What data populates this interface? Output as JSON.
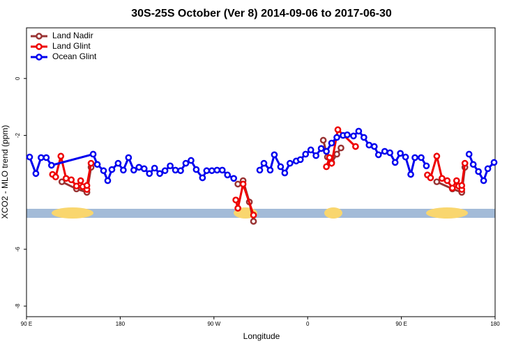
{
  "chart_data": {
    "type": "line",
    "title": "30S-25S October (Ver 8)   2014-09-06 to 2017-06-30",
    "x_label": "Longitude",
    "y_label": "XCO2 - MLO trend (ppm)",
    "xlim": [
      90,
      540
    ],
    "xticks": [
      {
        "value": 90,
        "label": "90 E"
      },
      {
        "value": 180,
        "label": "180"
      },
      {
        "value": 270,
        "label": "90 W"
      },
      {
        "value": 360,
        "label": "0"
      },
      {
        "value": 450,
        "label": "90 E"
      },
      {
        "value": 540,
        "label": "180"
      }
    ],
    "ylim": [
      -8.37,
      1.78
    ],
    "yticks": [
      0,
      -2,
      -6,
      -8
    ],
    "legend": "topleft",
    "series": [
      {
        "name": "Land Nadir",
        "color": "#993333",
        "x": [
          124,
          138,
          148,
          152,
          null,
          293,
          298,
          304,
          308,
          null,
          375,
          379,
          383,
          388,
          392,
          null,
          484,
          499,
          508,
          511
        ],
        "values": [
          -3.63,
          -3.88,
          -4.0,
          -3.12,
          null,
          -3.71,
          -3.59,
          -4.34,
          -5.02,
          null,
          -2.17,
          -2.76,
          -2.95,
          -2.66,
          -2.44,
          null,
          -3.63,
          -3.88,
          -4.0,
          -3.12
        ]
      },
      {
        "name": "Land Glint",
        "color": "#ee0000",
        "x": [
          115,
          118,
          123,
          128,
          133,
          138,
          142,
          144,
          148,
          148,
          152,
          null,
          291,
          293,
          298,
          308,
          null,
          378,
          381,
          383,
          389,
          406,
          null,
          475,
          478,
          484,
          489,
          494,
          499,
          503,
          505,
          508,
          508,
          511
        ],
        "values": [
          -3.37,
          -3.46,
          -2.73,
          -3.51,
          -3.56,
          -3.78,
          -3.59,
          -3.8,
          -3.9,
          -3.76,
          -2.98,
          null,
          -4.27,
          -4.56,
          -3.71,
          -4.8,
          null,
          -3.1,
          -2.78,
          -2.98,
          -1.8,
          -2.39,
          null,
          -3.39,
          -3.49,
          -2.73,
          -3.51,
          -3.59,
          -3.85,
          -3.59,
          -3.78,
          -3.9,
          -3.76,
          -2.98
        ]
      },
      {
        "name": "Ocean Glint",
        "color": "#0000ee",
        "x": [
          93,
          99,
          104,
          109,
          114,
          154,
          158,
          164,
          168,
          172,
          178,
          183,
          188,
          193,
          198,
          203,
          208,
          213,
          218,
          223,
          228,
          233,
          238,
          243,
          248,
          253,
          259,
          263,
          268,
          273,
          278,
          283,
          289,
          null,
          314,
          318,
          324,
          328,
          334,
          338,
          343,
          349,
          353,
          358,
          363,
          368,
          373,
          378,
          383,
          388,
          394,
          398,
          404,
          409,
          414,
          419,
          424,
          428,
          434,
          439,
          444,
          449,
          454,
          459,
          463,
          469,
          474,
          null,
          515,
          519,
          524,
          529,
          533,
          539
        ],
        "values": [
          -2.76,
          -3.34,
          -2.78,
          -2.78,
          -3.05,
          -2.66,
          -3.02,
          -3.24,
          -3.59,
          -3.2,
          -2.98,
          -3.22,
          -2.78,
          -3.22,
          -3.12,
          -3.17,
          -3.34,
          -3.15,
          -3.34,
          -3.24,
          -3.07,
          -3.22,
          -3.24,
          -2.98,
          -2.88,
          -3.2,
          -3.49,
          -3.24,
          -3.24,
          -3.22,
          -3.22,
          -3.39,
          -3.51,
          null,
          -3.22,
          -2.98,
          -3.22,
          -2.68,
          -3.1,
          -3.32,
          -2.98,
          -2.9,
          -2.85,
          -2.66,
          -2.51,
          -2.71,
          -2.46,
          -2.56,
          -2.27,
          -2.07,
          -2.0,
          -1.98,
          -2.02,
          -1.85,
          -2.07,
          -2.34,
          -2.39,
          -2.68,
          -2.56,
          -2.61,
          -2.95,
          -2.63,
          -2.76,
          -3.37,
          -2.78,
          -2.78,
          -3.07,
          null,
          -2.66,
          -3.02,
          -3.27,
          -3.59,
          -3.17,
          -2.95
        ]
      }
    ]
  }
}
